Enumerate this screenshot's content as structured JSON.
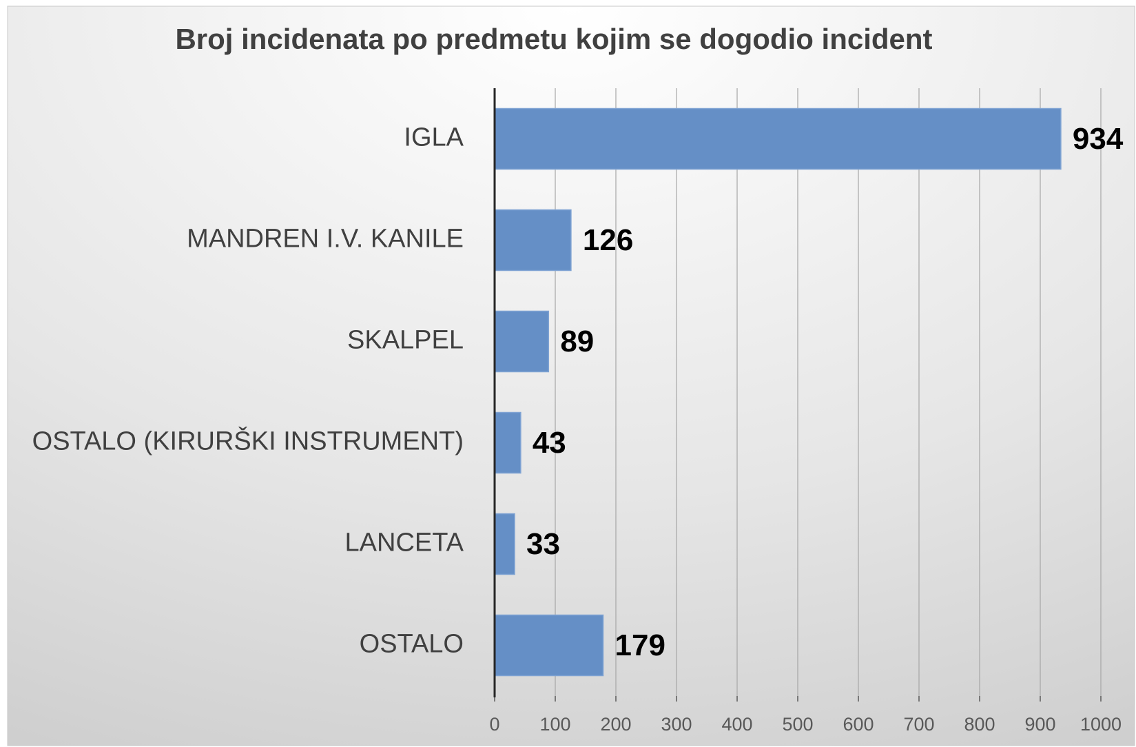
{
  "chart_data": {
    "type": "bar",
    "orientation": "horizontal",
    "title": "Broj incidenata po predmetu kojim se dogodio incident",
    "categories": [
      "IGLA",
      "MANDREN I.V. KANILE",
      "SKALPEL",
      "OSTALO (KIRURŠKI INSTRUMENT)",
      "LANCETA",
      "OSTALO"
    ],
    "values": [
      934,
      126,
      89,
      43,
      33,
      179
    ],
    "color": "#658fc6",
    "xlim": [
      0,
      1000
    ],
    "xticks": [
      0,
      100,
      200,
      300,
      400,
      500,
      600,
      700,
      800,
      900,
      1000
    ],
    "grid": true
  }
}
